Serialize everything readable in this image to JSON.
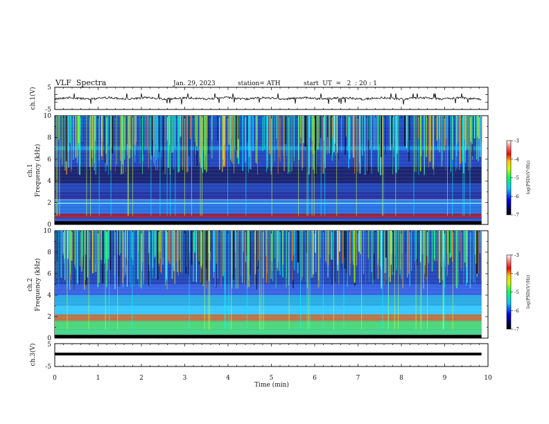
{
  "header": {
    "title": "VLF  Spectra",
    "date": "Jan. 29, 2023",
    "station": "station= ATH",
    "start": "start  UT  =   2  : 20 : 1"
  },
  "chart_data": [
    {
      "type": "line",
      "name": "waveform-ch1",
      "ylabel": "ch.1(V)",
      "yticks": [
        "5",
        "-5"
      ],
      "ylim": [
        -5,
        5
      ]
    },
    {
      "type": "heatmap",
      "name": "spectrogram-ch1",
      "ylabel": "ch.1",
      "ylabel2": "Frequency  (kHz)",
      "yticks": [
        "10",
        "8",
        "6",
        "4",
        "2",
        "0"
      ],
      "ylim": [
        0,
        10
      ],
      "colorbar": {
        "label": "log(PSD)(V²/Hz)",
        "ticks": [
          "-3",
          "-4",
          "-5",
          "-6",
          "-7"
        ],
        "range": [
          -7,
          -3
        ]
      }
    },
    {
      "type": "heatmap",
      "name": "spectrogram-ch2",
      "ylabel": "ch.2",
      "ylabel2": "Frequency  (kHz)",
      "yticks": [
        "10",
        "8",
        "6",
        "4",
        "2",
        "0"
      ],
      "ylim": [
        0,
        10
      ],
      "colorbar": {
        "label": "log(PSD)(V²/Hz)",
        "ticks": [
          "-3",
          "-4",
          "-5",
          "-6",
          "-7"
        ],
        "range": [
          -7,
          -3
        ]
      }
    },
    {
      "type": "line",
      "name": "waveform-ch3",
      "ylabel": "ch.3(V)",
      "yticks": [
        "5",
        "-5"
      ],
      "ylim": [
        -5,
        5
      ],
      "xlabel": "Time  (min)",
      "xticks": [
        "0",
        "1",
        "2",
        "3",
        "4",
        "5",
        "6",
        "7",
        "8",
        "9",
        "10"
      ],
      "xlim": [
        0,
        10
      ],
      "data_end_min": 9.85
    }
  ]
}
